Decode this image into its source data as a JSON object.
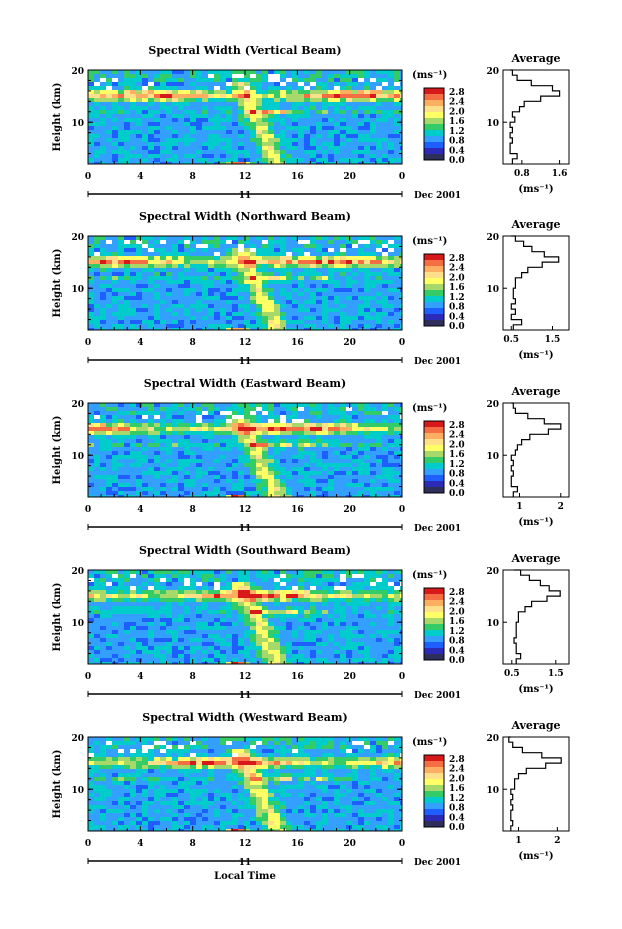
{
  "figure": {
    "common_xlabel": "Local Time",
    "date_label": "Dec 2001",
    "day_label": "11",
    "ylabel": "Height (km)",
    "unit": "(ms⁻¹)",
    "average_title": "Average",
    "colorbar_ticks": [
      "2.8",
      "2.4",
      "2.0",
      "1.6",
      "1.2",
      "0.8",
      "0.4",
      "0.0"
    ],
    "colorbar_colors": [
      "#d7191c",
      "#f46d43",
      "#fdae61",
      "#fee08b",
      "#ffff66",
      "#a6d96a",
      "#33cc66",
      "#00cccc",
      "#33a0ff",
      "#1f5fff",
      "#2b2bb8",
      "#2e2e5a"
    ]
  },
  "chart_data": [
    {
      "type": "heatmap",
      "title": "Spectral Width (Vertical Beam)",
      "x_ticks": [
        "0",
        "4",
        "8",
        "12",
        "16",
        "20",
        "0"
      ],
      "y_ticks": [
        "20",
        "10"
      ],
      "xlim": [
        0,
        24
      ],
      "ylim": [
        2,
        20
      ],
      "profile": {
        "title": "Average",
        "x_ticks": [
          "0.8",
          "1.6"
        ],
        "xlim": [
          0.4,
          1.8
        ],
        "heights": [
          2,
          3,
          4,
          5,
          6,
          7,
          8,
          9,
          10,
          11,
          12,
          13,
          14,
          15,
          16,
          17,
          18,
          19,
          20
        ],
        "values": [
          0.6,
          0.7,
          0.55,
          0.55,
          0.6,
          0.55,
          0.6,
          0.55,
          0.65,
          0.6,
          0.75,
          0.85,
          1.2,
          1.6,
          1.45,
          1.0,
          0.7,
          0.6,
          0.55
        ]
      }
    },
    {
      "type": "heatmap",
      "title": "Spectral Width (Northward Beam)",
      "x_ticks": [
        "0",
        "4",
        "8",
        "12",
        "16",
        "20",
        "0"
      ],
      "y_ticks": [
        "20",
        "10"
      ],
      "xlim": [
        0,
        24
      ],
      "ylim": [
        2,
        20
      ],
      "profile": {
        "title": "Average",
        "x_ticks": [
          "0.5",
          "1.5"
        ],
        "xlim": [
          0.3,
          1.9
        ],
        "heights": [
          2,
          3,
          4,
          5,
          6,
          7,
          8,
          9,
          10,
          11,
          12,
          13,
          14,
          15,
          16,
          17,
          18,
          19,
          20
        ],
        "values": [
          0.55,
          0.75,
          0.5,
          0.6,
          0.5,
          0.6,
          0.55,
          0.55,
          0.6,
          0.6,
          0.75,
          0.9,
          1.25,
          1.65,
          1.3,
          1.0,
          0.8,
          0.6,
          0.5
        ]
      }
    },
    {
      "type": "heatmap",
      "title": "Spectral Width (Eastward Beam)",
      "x_ticks": [
        "0",
        "4",
        "8",
        "12",
        "16",
        "20",
        "0"
      ],
      "y_ticks": [
        "20",
        "10"
      ],
      "xlim": [
        0,
        24
      ],
      "ylim": [
        2,
        20
      ],
      "profile": {
        "title": "Average",
        "x_ticks": [
          "1",
          "2"
        ],
        "xlim": [
          0.6,
          2.2
        ],
        "heights": [
          2,
          3,
          4,
          5,
          6,
          7,
          8,
          9,
          10,
          11,
          12,
          13,
          14,
          15,
          16,
          17,
          18,
          19,
          20
        ],
        "values": [
          0.85,
          0.95,
          0.8,
          0.8,
          0.85,
          0.8,
          0.85,
          0.8,
          0.9,
          0.95,
          1.05,
          1.25,
          1.7,
          2.0,
          1.6,
          1.2,
          0.9,
          0.85,
          0.8
        ]
      }
    },
    {
      "type": "heatmap",
      "title": "Spectral Width (Southward Beam)",
      "x_ticks": [
        "0",
        "4",
        "8",
        "12",
        "16",
        "20",
        "0"
      ],
      "y_ticks": [
        "20",
        "10"
      ],
      "xlim": [
        0,
        24
      ],
      "ylim": [
        2,
        20
      ],
      "profile": {
        "title": "Average",
        "x_ticks": [
          "0.5",
          "1.5"
        ],
        "xlim": [
          0.3,
          1.8
        ],
        "heights": [
          2,
          3,
          4,
          5,
          6,
          7,
          8,
          9,
          10,
          11,
          12,
          13,
          14,
          15,
          16,
          17,
          18,
          19,
          20
        ],
        "values": [
          0.6,
          0.7,
          0.6,
          0.6,
          0.55,
          0.6,
          0.6,
          0.6,
          0.65,
          0.65,
          0.8,
          0.95,
          1.3,
          1.6,
          1.35,
          1.15,
          0.9,
          0.7,
          0.55
        ]
      }
    },
    {
      "type": "heatmap",
      "title": "Spectral Width (Westward Beam)",
      "x_ticks": [
        "0",
        "4",
        "8",
        "12",
        "16",
        "20",
        "0"
      ],
      "y_ticks": [
        "20",
        "10"
      ],
      "xlim": [
        0,
        24
      ],
      "ylim": [
        2,
        20
      ],
      "profile": {
        "title": "Average",
        "x_ticks": [
          "1",
          "2"
        ],
        "xlim": [
          0.6,
          2.3
        ],
        "heights": [
          2,
          3,
          4,
          5,
          6,
          7,
          8,
          9,
          10,
          11,
          12,
          13,
          14,
          15,
          16,
          17,
          18,
          19,
          20
        ],
        "values": [
          0.8,
          0.85,
          0.8,
          0.8,
          0.85,
          0.8,
          0.85,
          0.8,
          0.9,
          0.9,
          1.0,
          1.2,
          1.7,
          2.1,
          1.6,
          1.1,
          0.85,
          0.75,
          0.8
        ]
      }
    }
  ]
}
